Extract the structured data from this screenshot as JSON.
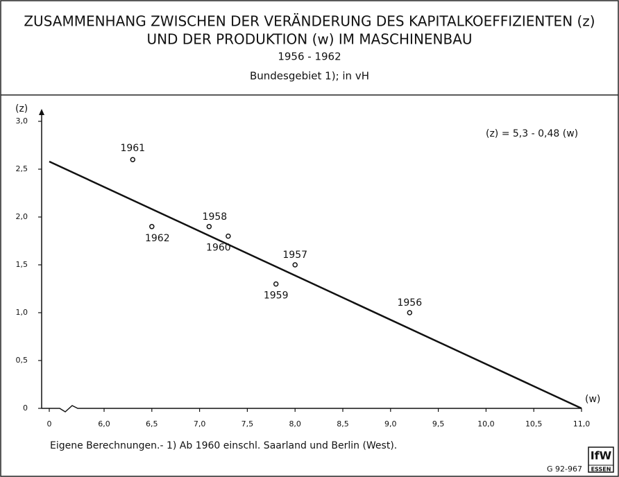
{
  "chart_data": {
    "type": "scatter",
    "title": "ZUSAMMENHANG ZWISCHEN DER VERÄNDERUNG DES KAPITALKOEFFIZIENTEN (z)",
    "title_line2": "UND DER PRODUKTION (w) IM MASCHINENBAU",
    "subtitle": "1956 - 1962",
    "subtitle2": "Bundesgebiet 1); in vH",
    "y_label": "(z)",
    "x_label": "(w)",
    "equation": "(z) = 5,3 - 0,48 (w)",
    "footnote": "Eigene Berechnungen.- 1) Ab 1960 einschl. Saarland und Berlin (West).",
    "code": "G 92-967",
    "logo": "IfW",
    "logo_sub": "ESSEN",
    "x_break": true,
    "xlim": [
      6.0,
      11.0
    ],
    "ylim": [
      0,
      3.0
    ],
    "xticks": [
      0,
      {
        "value": 6.0,
        "label": "6,0"
      },
      {
        "value": 6.5,
        "label": "6,5"
      },
      {
        "value": 7.0,
        "label": "7,0"
      },
      {
        "value": 7.5,
        "label": "7,5"
      },
      {
        "value": 8.0,
        "label": "8,0"
      },
      {
        "value": 8.5,
        "label": "8,5"
      },
      {
        "value": 9.0,
        "label": "9,0"
      },
      {
        "value": 9.5,
        "label": "9,5"
      },
      {
        "value": 10.0,
        "label": "10,0"
      },
      {
        "value": 10.5,
        "label": "10,5"
      },
      {
        "value": 11.0,
        "label": "11,0"
      }
    ],
    "yticks": [
      0,
      {
        "value": 0.5,
        "label": "0,5"
      },
      {
        "value": 1.0,
        "label": "1,0"
      },
      {
        "value": 1.5,
        "label": "1,5"
      },
      {
        "value": 2.0,
        "label": "2,0"
      },
      {
        "value": 2.5,
        "label": "2,5"
      },
      {
        "value": 3.0,
        "label": "3,0"
      }
    ],
    "labels": [
      "1961",
      "1962",
      "1958",
      "1960",
      "1957",
      "1959",
      "1956"
    ],
    "x": [
      6.3,
      6.5,
      7.1,
      7.3,
      8.0,
      7.8,
      9.2
    ],
    "values": [
      2.6,
      1.9,
      1.9,
      1.8,
      1.5,
      1.3,
      1.0
    ],
    "fit_line": {
      "x": [
        5.72,
        11.0
      ],
      "y": [
        2.58,
        0
      ]
    },
    "color": "#111111"
  }
}
